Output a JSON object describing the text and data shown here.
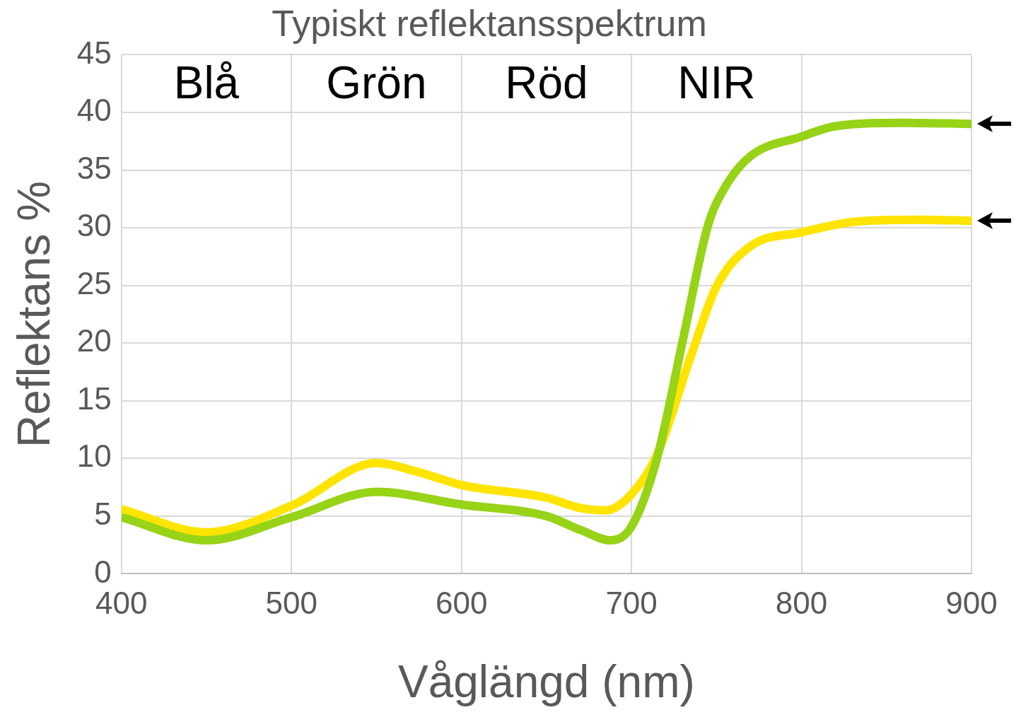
{
  "chart_data": {
    "type": "line",
    "title": "Typiskt reflektansspektrum",
    "xlabel": "Våglängd (nm)",
    "ylabel": "Reflektans %",
    "annotations": [
      "Blå",
      "Grön",
      "Röd",
      "NIR"
    ],
    "xlim": [
      400,
      900
    ],
    "xticks": [
      400,
      500,
      600,
      700,
      800,
      900
    ],
    "ylim": [
      0,
      45
    ],
    "yticks": [
      0,
      5,
      10,
      15,
      20,
      25,
      30,
      35,
      40,
      45
    ],
    "grid": true,
    "legend": false,
    "marker": "none",
    "line_style": "solid",
    "series": [
      {
        "color": "#97d317",
        "x": [
          400,
          450,
          500,
          550,
          600,
          650,
          670,
          688,
          700,
          715,
          730,
          745,
          755,
          770,
          800,
          820,
          860,
          900
        ],
        "values": [
          4.9,
          2.9,
          4.9,
          7.1,
          6.0,
          5.0,
          3.8,
          2.9,
          4.1,
          10.0,
          20.1,
          30.2,
          33.5,
          36.2,
          37.9,
          38.8,
          39.1,
          39.0
        ]
      },
      {
        "color": "#ffe400",
        "x": [
          400,
          450,
          500,
          550,
          575,
          600,
          650,
          670,
          685,
          700,
          715,
          735,
          750,
          770,
          800,
          830,
          870,
          900
        ],
        "values": [
          5.6,
          3.6,
          5.9,
          9.6,
          8.8,
          7.7,
          6.6,
          5.7,
          5.5,
          6.9,
          10.3,
          18.9,
          24.9,
          28.4,
          29.6,
          30.5,
          30.7,
          30.6
        ]
      }
    ]
  }
}
